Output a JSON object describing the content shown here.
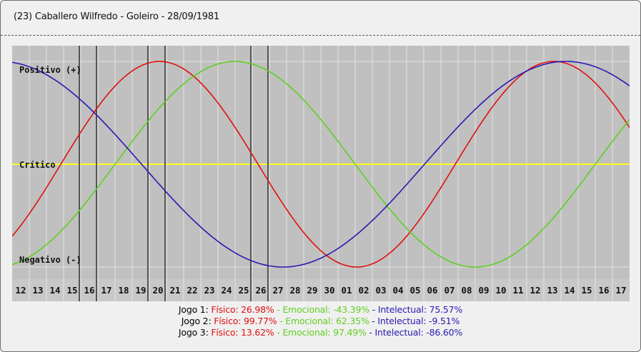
{
  "header": {
    "title": "(23)  Caballero Wilfredo -  Goleiro -   28/09/1981"
  },
  "chart_data": {
    "type": "line",
    "x": [
      "12",
      "13",
      "14",
      "15",
      "16",
      "17",
      "18",
      "19",
      "20",
      "21",
      "22",
      "23",
      "24",
      "25",
      "26",
      "27",
      "28",
      "29",
      "30",
      "01",
      "02",
      "03",
      "04",
      "05",
      "06",
      "07",
      "08",
      "09",
      "10",
      "11",
      "12",
      "13",
      "14",
      "15",
      "16",
      "17"
    ],
    "ylabels": {
      "positive": "Positivo (+)",
      "critical": "Crítico",
      "negative": "Negativo (-)"
    },
    "ylim": [
      -100,
      100
    ],
    "series": [
      {
        "name": "Físico",
        "color": "#e01010",
        "period": 23,
        "start": -70.0
      },
      {
        "name": "Emocional",
        "color": "#5fcf20",
        "period": 28,
        "start": -97.5
      },
      {
        "name": "Intelectual",
        "color": "#2a1ab0",
        "period": 33,
        "start": 99.1
      }
    ],
    "highlight_days": [
      {
        "name": "Jogo 1",
        "day": "16",
        "Físico": 26.98,
        "Emocional": -43.39,
        "Intelectual": 75.57
      },
      {
        "name": "Jogo 2",
        "day": "20",
        "Físico": 99.77,
        "Emocional": 62.35,
        "Intelectual": -9.51
      },
      {
        "name": "Jogo 3",
        "day": "26",
        "Físico": 13.62,
        "Emocional": 97.49,
        "Intelectual": -86.6
      }
    ],
    "colors": {
      "plot_bg": "#c0c0c0",
      "grid": "#e4e4e4",
      "critical_line": "#ffff20",
      "marker_line": "#555555",
      "axis_strip": "#c8c8c8"
    }
  },
  "legend": [
    {
      "label": "Jogo 1:",
      "fisico": "Físico: 26.98%",
      "emocional": "Emocional: -43.39%",
      "intelectual": "Intelectual: 75.57%"
    },
    {
      "label": "Jogo 2:",
      "fisico": "Físico: 99.77%",
      "emocional": "Emocional: 62.35%",
      "intelectual": "Intelectual: -9.51%"
    },
    {
      "label": "Jogo 3:",
      "fisico": "Físico: 13.62%",
      "emocional": "Emocional: 97.49%",
      "intelectual": "Intelectual: -86.60%"
    }
  ],
  "legend_separator": " - "
}
